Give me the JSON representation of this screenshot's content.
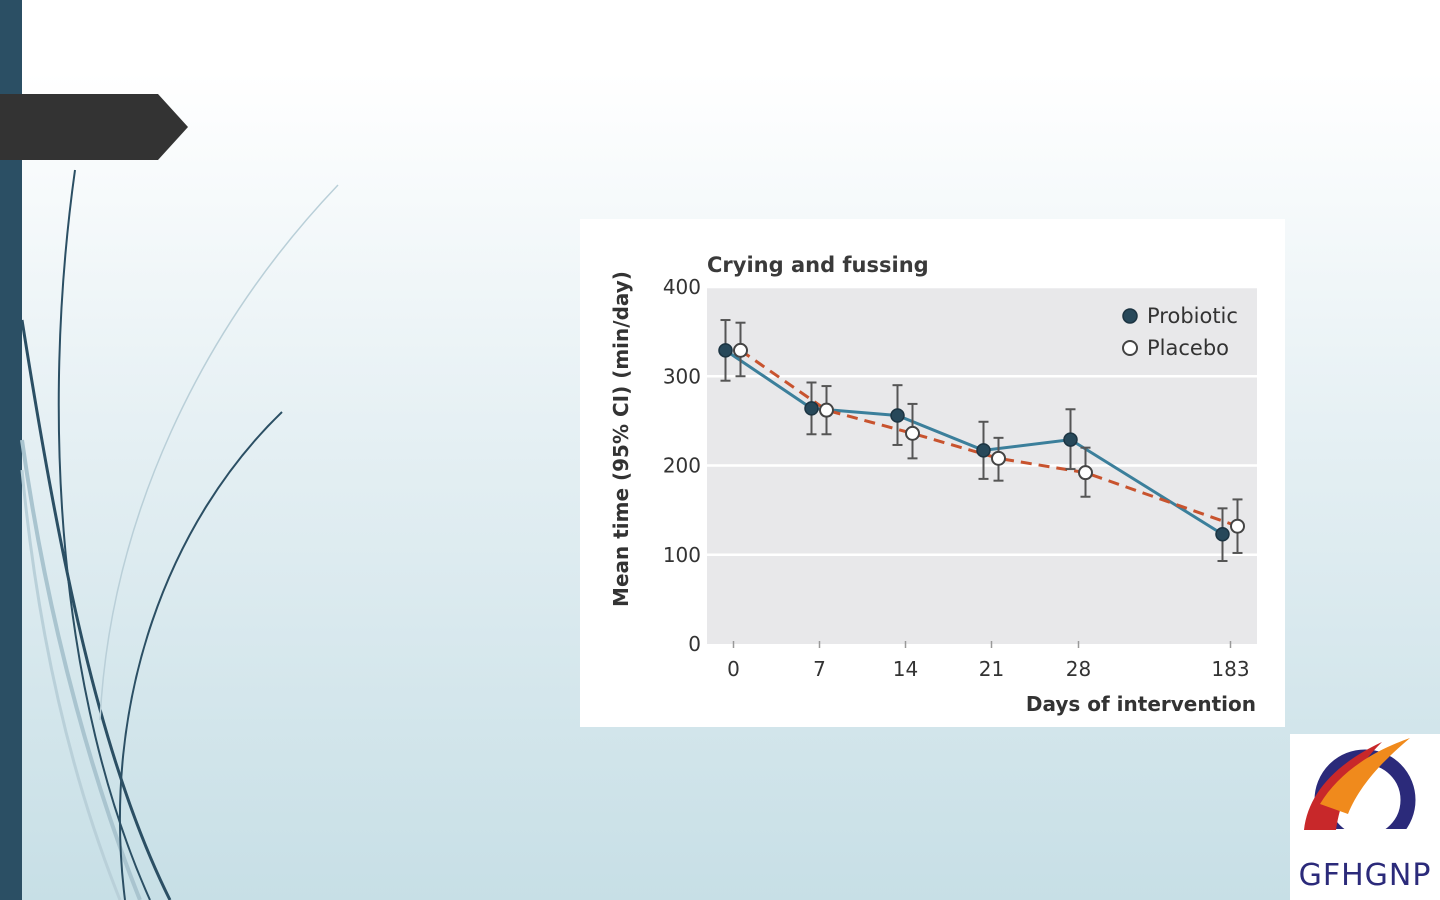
{
  "slide": {
    "side_bar_color": "#2b4f64",
    "tab_color": "#333333",
    "logo_text": "GFHGNP"
  },
  "chart_data": {
    "type": "line",
    "title": "Crying and fussing",
    "xlabel": "Days of intervention",
    "ylabel": "Mean time (95% CI) (min/day)",
    "ylim": [
      0,
      400
    ],
    "yticks": [
      0,
      100,
      200,
      300,
      400
    ],
    "categories": [
      "0",
      "7",
      "14",
      "21",
      "28",
      "183"
    ],
    "grid": true,
    "legend_position": "top-right",
    "series": [
      {
        "name": "Probiotic",
        "color": "#3b7f9b",
        "line_style": "solid",
        "marker": "filled",
        "values": [
          329,
          264,
          256,
          217,
          229,
          123
        ],
        "ci_low": [
          295,
          235,
          223,
          185,
          196,
          93
        ],
        "ci_high": [
          363,
          293,
          290,
          249,
          263,
          152
        ]
      },
      {
        "name": "Placebo",
        "color": "#c8532e",
        "line_style": "dashed",
        "marker": "open",
        "values": [
          329,
          262,
          236,
          208,
          192,
          132
        ],
        "ci_low": [
          300,
          235,
          208,
          183,
          165,
          102
        ],
        "ci_high": [
          360,
          289,
          269,
          231,
          220,
          162
        ]
      }
    ]
  }
}
